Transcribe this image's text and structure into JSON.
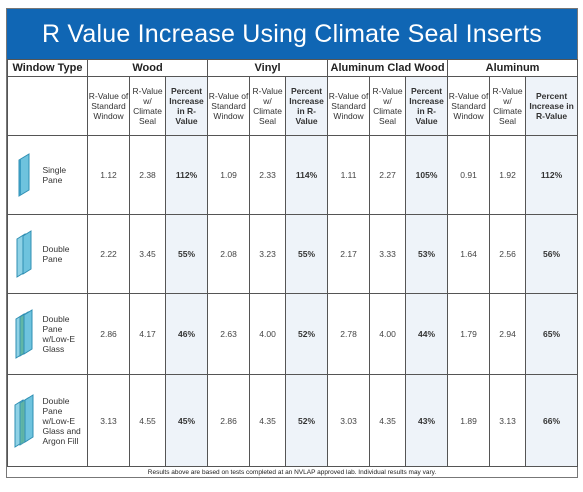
{
  "title": "R Value Increase Using Climate Seal Inserts",
  "window_type_header": "Window Type",
  "groups": [
    "Wood",
    "Vinyl",
    "Aluminum Clad Wood",
    "Aluminum"
  ],
  "subheaders": {
    "standard": "R-Value of Standard Window",
    "climate": "R-Value w/ Climate Seal",
    "percent": "Percent Increase in R-Value"
  },
  "rows": [
    {
      "icon": "single-pane-glass-icon",
      "label": "Single Pane",
      "cells": [
        "1.12",
        "2.38",
        "112%",
        "1.09",
        "2.33",
        "114%",
        "1.11",
        "2.27",
        "105%",
        "0.91",
        "1.92",
        "112%"
      ]
    },
    {
      "icon": "double-pane-glass-icon",
      "label": "Double Pane",
      "cells": [
        "2.22",
        "3.45",
        "55%",
        "2.08",
        "3.23",
        "55%",
        "2.17",
        "3.33",
        "53%",
        "1.64",
        "2.56",
        "56%"
      ]
    },
    {
      "icon": "double-pane-low-e-glass-icon",
      "label": "Double Pane w/Low-E Glass",
      "cells": [
        "2.86",
        "4.17",
        "46%",
        "2.63",
        "4.00",
        "52%",
        "2.78",
        "4.00",
        "44%",
        "1.79",
        "2.94",
        "65%"
      ]
    },
    {
      "icon": "double-pane-low-e-argon-glass-icon",
      "label": "Double Pane w/Low-E Glass and Argon Fill",
      "cells": [
        "3.13",
        "4.55",
        "45%",
        "2.86",
        "4.35",
        "52%",
        "3.03",
        "4.35",
        "43%",
        "1.89",
        "3.13",
        "66%"
      ]
    }
  ],
  "footnote": "Results above are based on tests completed at an NVLAP approved lab. Individual results may vary.",
  "colors": {
    "title_bg": "#1066b4",
    "title_text": "#ffffff",
    "percent_bg": "#eef3f9",
    "glass": "#5fb8d6"
  }
}
